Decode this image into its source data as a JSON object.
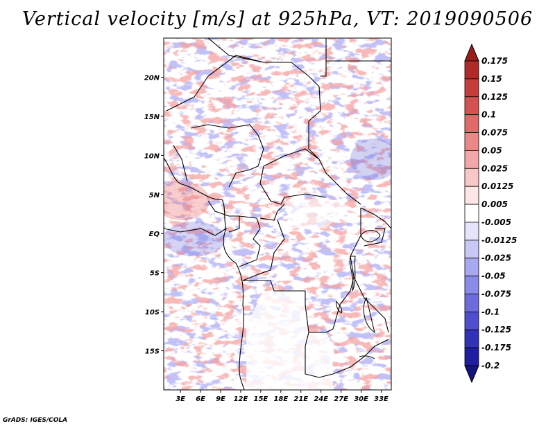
{
  "title": "Vertical velocity [m/s] at 925hPa, VT: 2019090506",
  "footer": "GrADS: IGES/COLA",
  "map": {
    "lat_labels": [
      "20N",
      "15N",
      "10N",
      "5N",
      "EQ",
      "5S",
      "10S",
      "15S"
    ],
    "lat_values": [
      20,
      15,
      10,
      5,
      0,
      -5,
      -10,
      -15
    ],
    "lon_labels": [
      "3E",
      "6E",
      "9E",
      "12E",
      "15E",
      "18E",
      "21E",
      "24E",
      "27E",
      "30E",
      "33E"
    ],
    "lon_values": [
      3,
      6,
      9,
      12,
      15,
      18,
      21,
      24,
      27,
      30,
      33
    ],
    "lon_range": [
      0.5,
      34.5
    ],
    "lat_range": [
      -20,
      25
    ]
  },
  "colorbar": {
    "labels": [
      "0.175",
      "0.15",
      "0.125",
      "0.1",
      "0.075",
      "0.05",
      "0.025",
      "0.0125",
      "0.005",
      "-0.005",
      "-0.0125",
      "-0.025",
      "-0.05",
      "-0.075",
      "-0.1",
      "-0.125",
      "-0.175",
      "-0.2"
    ],
    "colors": [
      "#9a1c1c",
      "#b02a2a",
      "#c43c3c",
      "#d45252",
      "#e06a6a",
      "#ea8888",
      "#f2a8a8",
      "#f8c8c8",
      "#fce6e6",
      "#ffffff",
      "#e4e4fb",
      "#c8c8f6",
      "#a8a8f0",
      "#8a8ae8",
      "#6c6cdc",
      "#4e4ece",
      "#3232b8",
      "#1e1ea0",
      "#14147e"
    ]
  }
}
